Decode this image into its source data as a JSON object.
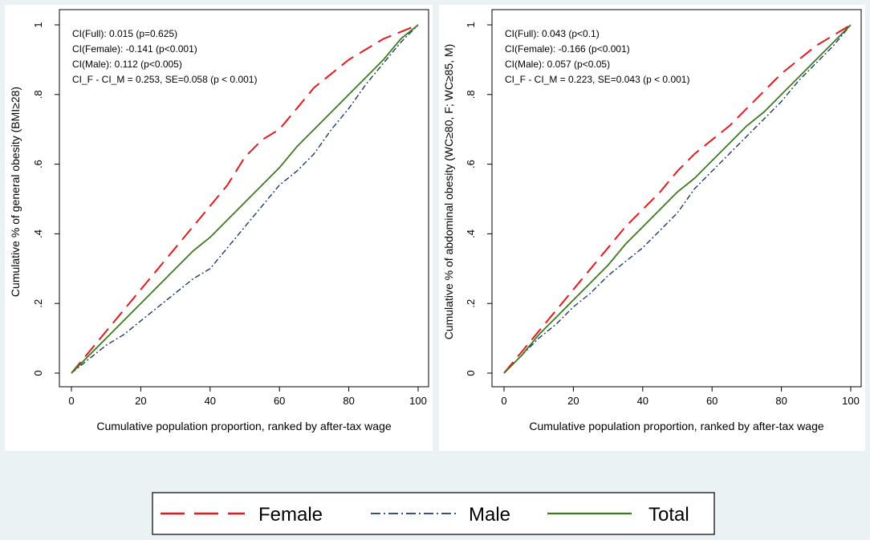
{
  "colors": {
    "female": "#e41a1c",
    "male": "#1a3a6e",
    "total": "#3d7a1f",
    "background": "#eaf2f3"
  },
  "legend": {
    "female": "Female",
    "male": "Male",
    "total": "Total"
  },
  "chart_data": [
    {
      "type": "line",
      "xlabel": "Cumulative population proportion, ranked by after-tax wage",
      "ylabel": "Cumulative % of general obesity (BMI≥28)",
      "xlim": [
        0,
        100
      ],
      "ylim": [
        0,
        1
      ],
      "xticks": [
        "0",
        "20",
        "40",
        "60",
        "80",
        "100"
      ],
      "yticks": [
        "0",
        ".2",
        ".4",
        ".6",
        ".8",
        "1"
      ],
      "annotations": [
        "CI(Full): 0.015 (p=0.625)",
        "CI(Female): -0.141 (p<0.001)",
        "CI(Male): 0.112 (p<0.005)",
        "CI_F - CI_M = 0.253, SE=0.058 (p < 0.001)"
      ],
      "series": [
        {
          "name": "Female",
          "x": [
            0,
            5,
            10,
            15,
            20,
            25,
            30,
            35,
            40,
            45,
            50,
            55,
            60,
            65,
            70,
            75,
            80,
            85,
            90,
            95,
            100
          ],
          "y": [
            0,
            0.06,
            0.12,
            0.18,
            0.24,
            0.3,
            0.36,
            0.42,
            0.48,
            0.54,
            0.62,
            0.67,
            0.7,
            0.76,
            0.82,
            0.86,
            0.9,
            0.93,
            0.96,
            0.98,
            1
          ]
        },
        {
          "name": "Male",
          "x": [
            0,
            5,
            10,
            15,
            20,
            25,
            30,
            35,
            40,
            45,
            50,
            55,
            60,
            65,
            70,
            75,
            80,
            85,
            90,
            95,
            100
          ],
          "y": [
            0,
            0.04,
            0.08,
            0.11,
            0.15,
            0.19,
            0.23,
            0.27,
            0.3,
            0.36,
            0.42,
            0.48,
            0.54,
            0.58,
            0.63,
            0.7,
            0.76,
            0.83,
            0.89,
            0.95,
            1
          ]
        },
        {
          "name": "Total",
          "x": [
            0,
            5,
            10,
            15,
            20,
            25,
            30,
            35,
            40,
            45,
            50,
            55,
            60,
            65,
            70,
            75,
            80,
            85,
            90,
            95,
            100
          ],
          "y": [
            0,
            0.05,
            0.1,
            0.15,
            0.2,
            0.25,
            0.3,
            0.35,
            0.39,
            0.44,
            0.49,
            0.54,
            0.59,
            0.65,
            0.7,
            0.75,
            0.8,
            0.85,
            0.9,
            0.96,
            1
          ]
        }
      ]
    },
    {
      "type": "line",
      "xlabel": "Cumulative population proportion, ranked by after-tax wage",
      "ylabel": "Cumulative % of abdominal obesity (WC≥80, F; WC≥85, M)",
      "xlim": [
        0,
        100
      ],
      "ylim": [
        0,
        1
      ],
      "xticks": [
        "0",
        "20",
        "40",
        "60",
        "80",
        "100"
      ],
      "yticks": [
        "0",
        ".2",
        ".4",
        ".6",
        ".8",
        "1"
      ],
      "annotations": [
        "CI(Full): 0.043 (p<0.1)",
        "CI(Female): -0.166 (p<0.001)",
        "CI(Male): 0.057 (p<0.05)",
        "CI_F - CI_M = 0.223, SE=0.043 (p < 0.001)"
      ],
      "series": [
        {
          "name": "Female",
          "x": [
            0,
            5,
            10,
            15,
            20,
            25,
            30,
            35,
            40,
            45,
            50,
            55,
            60,
            65,
            70,
            75,
            80,
            85,
            90,
            95,
            100
          ],
          "y": [
            0,
            0.06,
            0.12,
            0.18,
            0.24,
            0.3,
            0.36,
            0.42,
            0.47,
            0.52,
            0.58,
            0.63,
            0.67,
            0.71,
            0.76,
            0.81,
            0.86,
            0.9,
            0.94,
            0.97,
            1
          ]
        },
        {
          "name": "Male",
          "x": [
            0,
            5,
            10,
            15,
            20,
            25,
            30,
            35,
            40,
            45,
            50,
            55,
            60,
            65,
            70,
            75,
            80,
            85,
            90,
            95,
            100
          ],
          "y": [
            0,
            0.05,
            0.1,
            0.14,
            0.19,
            0.23,
            0.28,
            0.32,
            0.36,
            0.41,
            0.46,
            0.53,
            0.58,
            0.63,
            0.68,
            0.73,
            0.78,
            0.84,
            0.89,
            0.94,
            1
          ]
        },
        {
          "name": "Total",
          "x": [
            0,
            5,
            10,
            15,
            20,
            25,
            30,
            35,
            40,
            45,
            50,
            55,
            60,
            65,
            70,
            75,
            80,
            85,
            90,
            95,
            100
          ],
          "y": [
            0,
            0.05,
            0.11,
            0.16,
            0.21,
            0.26,
            0.31,
            0.37,
            0.42,
            0.47,
            0.52,
            0.56,
            0.61,
            0.66,
            0.71,
            0.75,
            0.8,
            0.85,
            0.9,
            0.95,
            1
          ]
        }
      ]
    }
  ]
}
